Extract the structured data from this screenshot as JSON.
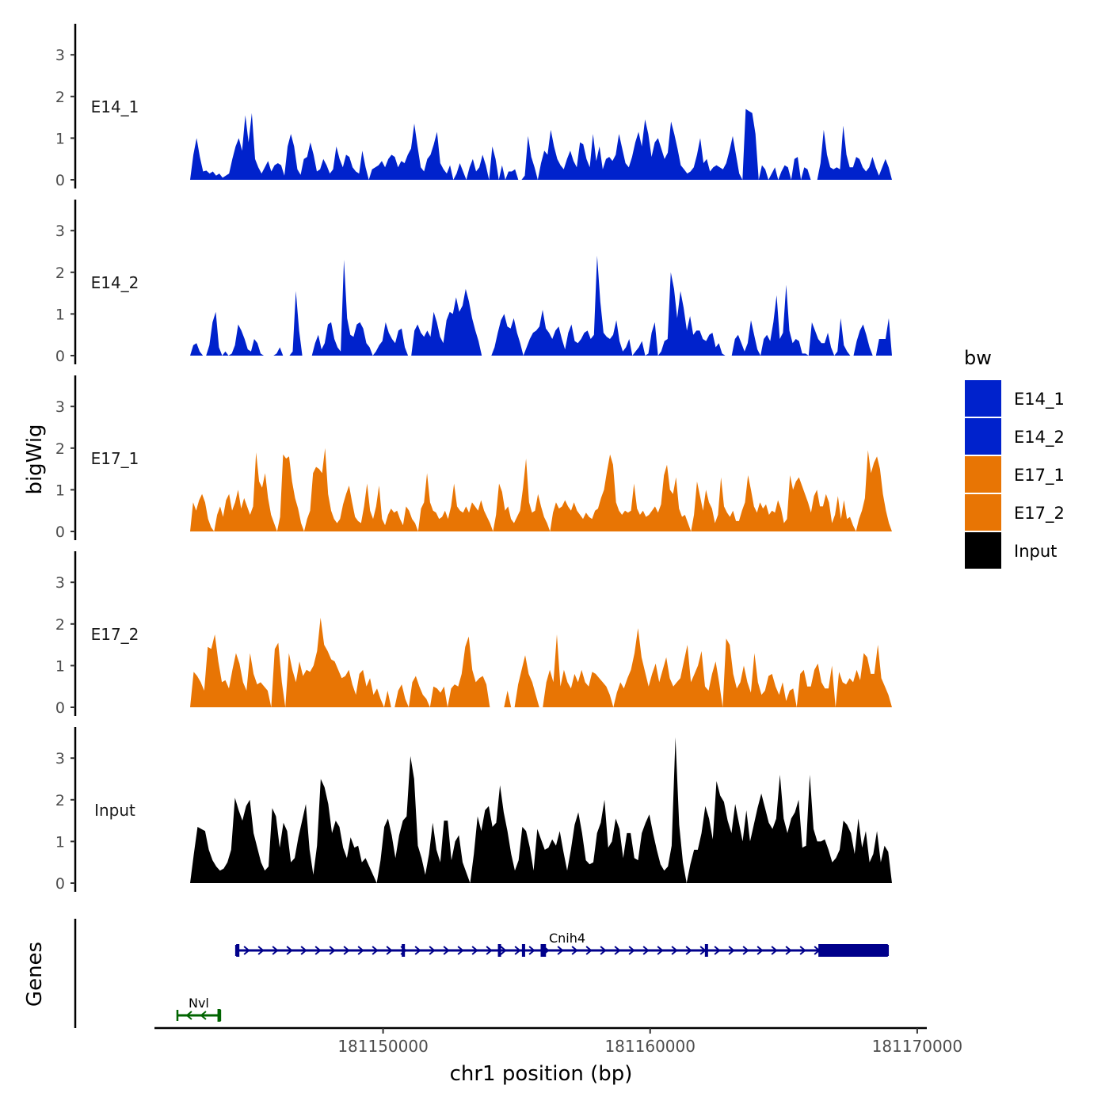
{
  "chart_data": {
    "type": "area",
    "title": "",
    "ylabel": "bigWig",
    "xlabel": "chr1 position (bp)",
    "chromosome": "chr1",
    "xlim": [
      181141500,
      181170300
    ],
    "ylim": [
      0,
      3.7
    ],
    "y_ticks": [
      0,
      1,
      2,
      3
    ],
    "x_ticks": [
      181150000,
      181160000,
      181170000
    ],
    "x_tick_labels": [
      "181150000",
      "181160000",
      "181170000"
    ],
    "legend": {
      "title": "bw",
      "placement": "right",
      "items": [
        {
          "label": "E14_1",
          "color": "#0022CC"
        },
        {
          "label": "E14_2",
          "color": "#0022CC"
        },
        {
          "label": "E17_1",
          "color": "#E87504"
        },
        {
          "label": "E17_2",
          "color": "#E87504"
        },
        {
          "label": "Input",
          "color": "#000000"
        }
      ]
    },
    "tracks": [
      {
        "name": "E14_1",
        "color": "#0022CC",
        "values": [
          0.0,
          0.6,
          1.0,
          0.55,
          0.2,
          0.22,
          0.15,
          0.2,
          0.1,
          0.15,
          0.05,
          0.1,
          0.15,
          0.5,
          0.8,
          1.0,
          0.7,
          1.55,
          0.9,
          1.6,
          0.5,
          0.3,
          0.15,
          0.3,
          0.45,
          0.2,
          0.35,
          0.4,
          0.35,
          0.1,
          0.8,
          1.1,
          0.8,
          0.25,
          0.12,
          0.5,
          0.55,
          0.9,
          0.6,
          0.2,
          0.25,
          0.5,
          0.35,
          0.15,
          0.25,
          0.8,
          0.5,
          0.3,
          0.6,
          0.55,
          0.3,
          0.2,
          0.15,
          0.7,
          0.3,
          0.0,
          0.25,
          0.3,
          0.35,
          0.45,
          0.3,
          0.5,
          0.6,
          0.55,
          0.3,
          0.45,
          0.4,
          0.6,
          0.75,
          1.35,
          0.8,
          0.3,
          0.2,
          0.5,
          0.6,
          0.85,
          1.15,
          0.4,
          0.25,
          0.15,
          0.35,
          0.0,
          0.15,
          0.4,
          0.2,
          0.0,
          0.3,
          0.5,
          0.2,
          0.3,
          0.6,
          0.35,
          0.0,
          0.8,
          0.5,
          0.0,
          0.35,
          0.0,
          0.2,
          0.2,
          0.25,
          0.0,
          0.0,
          0.1,
          1.05,
          0.55,
          0.3,
          0.0,
          0.4,
          0.7,
          0.6,
          1.2,
          0.8,
          0.5,
          0.35,
          0.25,
          0.5,
          0.7,
          0.45,
          0.3,
          0.9,
          0.85,
          0.5,
          0.3,
          1.1,
          0.45,
          0.8,
          0.25,
          0.5,
          0.55,
          0.45,
          0.6,
          1.1,
          0.75,
          0.4,
          0.3,
          0.55,
          0.9,
          1.15,
          0.8,
          1.45,
          1.1,
          0.55,
          0.9,
          1.0,
          0.75,
          0.5,
          0.65,
          1.4,
          1.1,
          0.75,
          0.35,
          0.25,
          0.15,
          0.2,
          0.3,
          0.6,
          1.0,
          0.4,
          0.5,
          0.2,
          0.3,
          0.35,
          0.3,
          0.25,
          0.4,
          0.7,
          1.05,
          0.6,
          0.15,
          0.0,
          1.7,
          1.65,
          1.6,
          1.1,
          0.0,
          0.35,
          0.25,
          0.0,
          0.15,
          0.3,
          0.0,
          0.2,
          0.35,
          0.3,
          0.0,
          0.5,
          0.55,
          0.0,
          0.3,
          0.25,
          0.0,
          0.0,
          0.0,
          0.4,
          1.2,
          0.6,
          0.3,
          0.25,
          0.3,
          0.25,
          1.3,
          0.6,
          0.3,
          0.3,
          0.55,
          0.5,
          0.3,
          0.2,
          0.3,
          0.55,
          0.3,
          0.1,
          0.3,
          0.5,
          0.3,
          0.0
        ]
      },
      {
        "name": "E14_2",
        "color": "#0022CC",
        "values": [
          0.0,
          0.25,
          0.3,
          0.1,
          0.0,
          0.0,
          0.25,
          0.8,
          1.05,
          0.2,
          0.0,
          0.1,
          0.0,
          0.05,
          0.25,
          0.75,
          0.6,
          0.4,
          0.15,
          0.1,
          0.4,
          0.3,
          0.05,
          0.0,
          0.0,
          0.0,
          0.0,
          0.05,
          0.2,
          0.0,
          0.0,
          0.0,
          0.1,
          1.55,
          0.6,
          0.0,
          0.0,
          0.0,
          0.0,
          0.3,
          0.5,
          0.15,
          0.3,
          0.75,
          0.8,
          0.4,
          0.2,
          0.1,
          2.3,
          0.9,
          0.5,
          0.45,
          0.75,
          0.8,
          0.65,
          0.3,
          0.2,
          0.0,
          0.1,
          0.25,
          0.35,
          0.8,
          0.55,
          0.4,
          0.3,
          0.6,
          0.65,
          0.2,
          0.0,
          0.0,
          0.6,
          0.75,
          0.55,
          0.45,
          0.6,
          0.45,
          1.05,
          0.8,
          0.45,
          0.3,
          0.85,
          1.05,
          1.0,
          1.4,
          1.05,
          1.2,
          1.6,
          1.3,
          0.9,
          0.6,
          0.35,
          0.0,
          0.0,
          0.0,
          0.0,
          0.2,
          0.55,
          0.85,
          1.0,
          0.7,
          0.65,
          0.9,
          0.55,
          0.3,
          0.0,
          0.2,
          0.4,
          0.55,
          0.6,
          0.7,
          1.1,
          0.65,
          0.55,
          0.4,
          0.6,
          0.7,
          0.4,
          0.15,
          0.55,
          0.75,
          0.35,
          0.3,
          0.4,
          0.55,
          0.6,
          0.4,
          0.5,
          2.4,
          1.3,
          0.55,
          0.45,
          0.4,
          0.5,
          0.85,
          0.35,
          0.1,
          0.2,
          0.4,
          0.0,
          0.1,
          0.2,
          0.35,
          0.0,
          0.05,
          0.55,
          0.8,
          0.0,
          0.1,
          0.35,
          0.4,
          2.0,
          1.6,
          0.9,
          1.55,
          1.15,
          0.6,
          0.95,
          0.5,
          0.6,
          0.6,
          0.4,
          0.35,
          0.5,
          0.55,
          0.2,
          0.3,
          0.05,
          0.0,
          0.0,
          0.0,
          0.4,
          0.5,
          0.3,
          0.1,
          0.3,
          0.85,
          0.5,
          0.15,
          0.0,
          0.4,
          0.5,
          0.35,
          0.8,
          1.45,
          0.4,
          0.55,
          1.7,
          0.6,
          0.3,
          0.4,
          0.35,
          0.05,
          0.05,
          0.0,
          0.8,
          0.6,
          0.4,
          0.3,
          0.3,
          0.55,
          0.2,
          0.0,
          0.1,
          0.9,
          0.25,
          0.1,
          0.0,
          0.0,
          0.35,
          0.6,
          0.75,
          0.5,
          0.2,
          0.0,
          0.0,
          0.4,
          0.4,
          0.4,
          0.9,
          0.0
        ]
      },
      {
        "name": "E17_1",
        "color": "#E87504",
        "values": [
          0.0,
          0.7,
          0.5,
          0.75,
          0.9,
          0.7,
          0.3,
          0.1,
          0.0,
          0.4,
          0.6,
          0.35,
          0.75,
          0.9,
          0.5,
          0.7,
          1.0,
          0.55,
          0.8,
          0.6,
          0.4,
          0.6,
          1.9,
          1.2,
          1.05,
          1.4,
          0.8,
          0.4,
          0.2,
          0.0,
          0.35,
          1.85,
          1.75,
          1.8,
          1.2,
          0.8,
          0.55,
          0.2,
          0.0,
          0.3,
          0.5,
          1.4,
          1.55,
          1.5,
          1.4,
          2.0,
          0.9,
          0.5,
          0.3,
          0.2,
          0.3,
          0.65,
          0.9,
          1.1,
          0.7,
          0.35,
          0.25,
          0.2,
          0.6,
          1.15,
          0.5,
          0.3,
          0.6,
          1.1,
          0.3,
          0.15,
          0.4,
          0.55,
          0.45,
          0.5,
          0.3,
          0.15,
          0.6,
          0.5,
          0.3,
          0.2,
          0.0,
          0.55,
          0.7,
          1.4,
          0.7,
          0.5,
          0.45,
          0.3,
          0.35,
          0.5,
          0.3,
          0.6,
          1.15,
          0.6,
          0.5,
          0.45,
          0.6,
          0.45,
          0.7,
          0.6,
          0.5,
          0.75,
          0.5,
          0.35,
          0.2,
          0.0,
          0.4,
          1.15,
          0.95,
          0.5,
          0.6,
          0.3,
          0.2,
          0.35,
          0.5,
          1.05,
          1.75,
          0.7,
          0.45,
          0.5,
          0.9,
          0.6,
          0.35,
          0.2,
          0.0,
          0.45,
          0.7,
          0.55,
          0.6,
          0.75,
          0.6,
          0.5,
          0.7,
          0.5,
          0.4,
          0.3,
          0.45,
          0.35,
          0.3,
          0.5,
          0.55,
          0.8,
          1.0,
          1.45,
          1.85,
          1.6,
          0.7,
          0.5,
          0.4,
          0.5,
          0.45,
          0.5,
          1.15,
          0.55,
          0.4,
          0.5,
          0.35,
          0.4,
          0.5,
          0.6,
          0.45,
          0.65,
          1.35,
          1.6,
          1.0,
          0.9,
          1.3,
          0.55,
          0.35,
          0.4,
          0.2,
          0.0,
          0.4,
          1.2,
          0.85,
          0.5,
          1.0,
          0.7,
          0.55,
          0.2,
          0.4,
          1.3,
          0.6,
          0.45,
          0.35,
          0.5,
          0.25,
          0.25,
          0.5,
          0.7,
          1.35,
          1.0,
          0.6,
          0.45,
          0.7,
          0.55,
          0.65,
          0.4,
          0.5,
          0.45,
          0.75,
          0.55,
          0.2,
          0.3,
          1.35,
          1.0,
          1.2,
          1.3,
          1.1,
          0.9,
          0.7,
          0.45,
          0.85,
          1.0,
          0.6,
          0.6,
          0.9,
          0.7,
          0.2,
          0.4,
          0.85,
          0.3,
          0.75,
          0.3,
          0.35,
          0.15,
          0.0,
          0.3,
          0.5,
          0.8,
          1.95,
          1.4,
          1.65,
          1.8,
          1.5,
          0.9,
          0.5,
          0.2,
          0.0
        ]
      },
      {
        "name": "E17_2",
        "color": "#E87504",
        "values": [
          0.0,
          0.85,
          0.75,
          0.6,
          0.4,
          1.45,
          1.4,
          1.75,
          1.1,
          0.6,
          0.65,
          0.45,
          0.9,
          1.3,
          1.05,
          0.6,
          0.4,
          1.3,
          0.8,
          0.55,
          0.6,
          0.5,
          0.4,
          0.0,
          1.4,
          1.55,
          0.6,
          0.0,
          1.3,
          0.9,
          0.6,
          1.1,
          0.75,
          0.9,
          0.85,
          1.0,
          1.35,
          2.15,
          1.5,
          1.35,
          1.15,
          1.1,
          0.9,
          0.7,
          0.75,
          0.9,
          0.55,
          0.3,
          0.8,
          0.9,
          0.5,
          0.7,
          0.3,
          0.45,
          0.2,
          0.0,
          0.4,
          0.0,
          0.0,
          0.4,
          0.55,
          0.2,
          0.0,
          0.6,
          0.75,
          0.5,
          0.3,
          0.2,
          0.0,
          0.5,
          0.45,
          0.35,
          0.5,
          0.0,
          0.45,
          0.55,
          0.5,
          0.8,
          1.45,
          1.7,
          0.9,
          0.6,
          0.7,
          0.75,
          0.55,
          0.0,
          0.0,
          0.0,
          0.0,
          0.0,
          0.4,
          0.0,
          0.0,
          0.55,
          0.9,
          1.25,
          0.8,
          0.6,
          0.3,
          0.0,
          0.0,
          0.6,
          0.9,
          0.6,
          1.75,
          0.5,
          0.9,
          0.6,
          0.45,
          0.8,
          0.6,
          0.9,
          0.6,
          0.5,
          0.85,
          0.8,
          0.7,
          0.6,
          0.5,
          0.3,
          0.0,
          0.35,
          0.6,
          0.45,
          0.7,
          0.9,
          1.3,
          1.9,
          1.2,
          0.85,
          0.5,
          0.8,
          1.05,
          0.6,
          0.9,
          1.2,
          0.7,
          0.5,
          0.6,
          0.7,
          1.1,
          1.5,
          0.6,
          0.8,
          1.0,
          1.35,
          0.5,
          0.4,
          0.8,
          1.1,
          0.6,
          0.0,
          1.65,
          1.5,
          0.8,
          0.45,
          0.6,
          1.0,
          0.6,
          0.35,
          1.3,
          0.6,
          0.3,
          0.4,
          0.75,
          0.8,
          0.5,
          0.3,
          0.6,
          0.15,
          0.4,
          0.45,
          0.0,
          0.8,
          0.9,
          0.5,
          0.5,
          0.9,
          1.05,
          0.6,
          0.45,
          0.45,
          1.0,
          0.0,
          0.85,
          0.6,
          0.55,
          0.7,
          0.6,
          0.9,
          0.65,
          1.3,
          1.2,
          0.8,
          0.8,
          1.5,
          0.7,
          0.5,
          0.3,
          0.0
        ]
      },
      {
        "name": "Input",
        "color": "#000000",
        "values": [
          0.0,
          0.7,
          1.35,
          1.3,
          1.25,
          0.8,
          0.55,
          0.4,
          0.3,
          0.35,
          0.5,
          0.8,
          2.05,
          1.75,
          1.5,
          1.85,
          2.0,
          1.2,
          0.85,
          0.5,
          0.3,
          0.4,
          1.8,
          1.6,
          0.85,
          1.45,
          1.25,
          0.5,
          0.6,
          1.1,
          1.5,
          1.9,
          0.8,
          0.2,
          0.9,
          2.5,
          2.3,
          1.9,
          1.2,
          1.5,
          1.35,
          0.85,
          0.6,
          1.1,
          0.85,
          0.9,
          0.5,
          0.6,
          0.4,
          0.2,
          0.0,
          0.55,
          1.35,
          1.55,
          1.15,
          0.6,
          1.15,
          1.5,
          1.6,
          3.05,
          2.5,
          0.9,
          0.6,
          0.2,
          0.7,
          1.45,
          0.8,
          0.5,
          1.5,
          1.5,
          0.55,
          1.0,
          1.15,
          0.5,
          0.25,
          0.0,
          0.7,
          1.6,
          1.25,
          1.75,
          1.85,
          1.35,
          1.45,
          2.35,
          1.7,
          1.25,
          0.7,
          0.3,
          0.55,
          1.35,
          1.25,
          0.85,
          0.3,
          1.3,
          1.05,
          0.8,
          0.85,
          1.05,
          0.9,
          1.25,
          0.75,
          0.3,
          0.8,
          1.4,
          1.7,
          1.2,
          0.55,
          0.45,
          0.5,
          1.2,
          1.45,
          2.0,
          0.85,
          1.0,
          1.55,
          1.3,
          0.6,
          1.2,
          1.2,
          0.6,
          0.55,
          1.2,
          1.45,
          1.65,
          1.2,
          0.8,
          0.45,
          0.3,
          0.4,
          0.9,
          3.5,
          1.4,
          0.5,
          0.0,
          0.45,
          0.8,
          0.8,
          1.2,
          1.85,
          1.55,
          1.05,
          2.45,
          2.1,
          1.95,
          1.5,
          1.2,
          1.9,
          1.45,
          1.0,
          1.75,
          1.0,
          1.4,
          1.8,
          2.15,
          1.8,
          1.45,
          1.3,
          1.55,
          2.6,
          1.55,
          1.2,
          1.55,
          1.7,
          2.0,
          0.85,
          0.9,
          2.6,
          1.3,
          1.0,
          1.0,
          1.05,
          0.8,
          0.5,
          0.6,
          0.8,
          1.5,
          1.4,
          1.2,
          0.7,
          1.55,
          0.85,
          1.25,
          0.5,
          0.7,
          1.25,
          0.5,
          0.9,
          0.75,
          0.0
        ]
      }
    ],
    "genes_track": {
      "label": "Genes",
      "genes": [
        {
          "name": "Cnih4",
          "strand": "+",
          "color": "#00008B",
          "start": 181144500,
          "end": 181168900,
          "exons": [
            [
              181144500,
              181144620
            ],
            [
              181150700,
              181150800
            ],
            [
              181154300,
              181154380
            ],
            [
              181155200,
              181155320
            ],
            [
              181155900,
              181156100
            ],
            [
              181162050,
              181162150
            ],
            [
              181166300,
              181168900
            ]
          ]
        },
        {
          "name": "Nvl",
          "strand": "-",
          "color": "#006400",
          "start": 181142300,
          "end": 181143900,
          "exons": [
            [
              181143800,
              181143900
            ]
          ]
        }
      ]
    }
  }
}
